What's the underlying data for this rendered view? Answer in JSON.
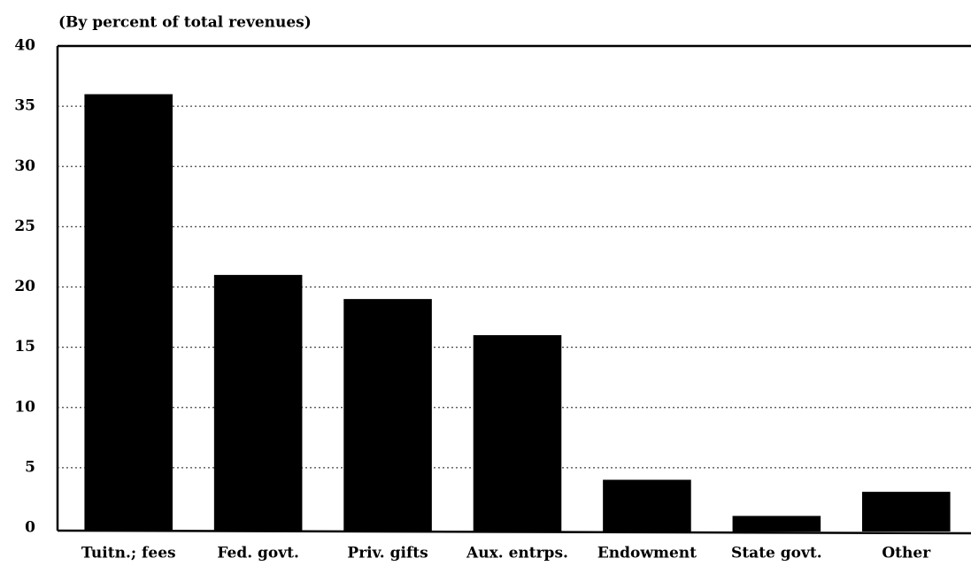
{
  "chart_data": {
    "type": "bar",
    "title": "(By percent of total revenues)",
    "categories": [
      "Tuitn.; fees",
      "Fed. govt.",
      "Priv. gifts",
      "Aux. entrps.",
      "Endowment",
      "State govt.",
      "Other"
    ],
    "values": [
      36,
      21,
      19,
      16,
      4,
      1,
      3
    ],
    "color": "#000000",
    "ylim": [
      0,
      40
    ],
    "yticks": [
      0,
      5,
      10,
      15,
      20,
      25,
      30,
      35,
      40
    ],
    "grid": true
  }
}
